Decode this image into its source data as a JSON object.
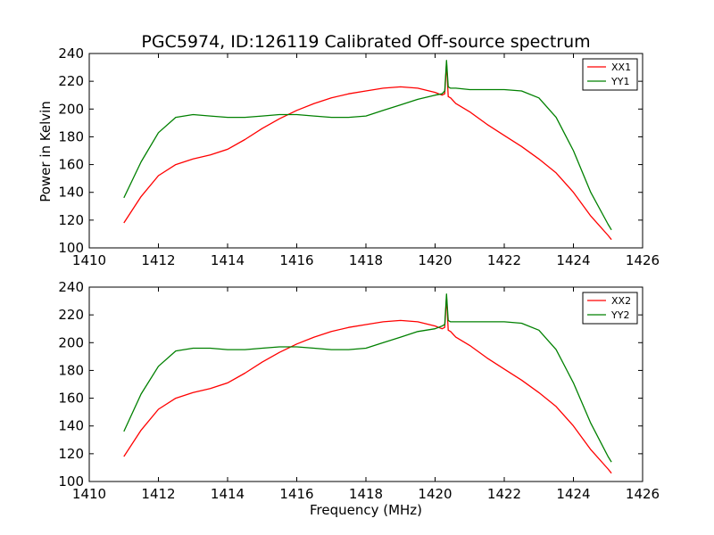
{
  "figure": {
    "title": "PGC5974, ID:126119 Calibrated Off-source spectrum",
    "xlabel": "Frequency (MHz)",
    "ylabel": "Power in Kelvin"
  },
  "chart_data": [
    {
      "type": "line",
      "title": "PGC5974, ID:126119 Calibrated Off-source spectrum",
      "xlabel": "",
      "ylabel": "Power in Kelvin",
      "xlim": [
        1410,
        1426
      ],
      "ylim": [
        100,
        240
      ],
      "xticks": [
        "1410",
        "1412",
        "1414",
        "1416",
        "1418",
        "1420",
        "1422",
        "1424",
        "1426"
      ],
      "yticks": [
        "100",
        "120",
        "140",
        "160",
        "180",
        "200",
        "220",
        "240"
      ],
      "grid": false,
      "legend_position": "top-right",
      "x": [
        1411.0,
        1411.5,
        1412.0,
        1412.5,
        1413.0,
        1413.5,
        1414.0,
        1414.5,
        1415.0,
        1415.5,
        1416.0,
        1416.5,
        1417.0,
        1417.5,
        1418.0,
        1418.5,
        1419.0,
        1419.5,
        1420.0,
        1420.2,
        1420.28,
        1420.33,
        1420.38,
        1420.45,
        1420.6,
        1421.0,
        1421.5,
        1422.0,
        1422.5,
        1423.0,
        1423.5,
        1424.0,
        1424.5,
        1425.0,
        1425.1
      ],
      "series": [
        {
          "name": "XX1",
          "color": "#ff0000",
          "values": [
            118,
            137,
            152,
            160,
            164,
            167,
            171,
            178,
            186,
            193,
            199,
            204,
            208,
            211,
            213,
            215,
            216,
            215,
            212,
            210,
            211,
            233,
            209,
            208,
            204,
            198,
            189,
            181,
            173,
            164,
            154,
            140,
            123,
            109,
            106
          ]
        },
        {
          "name": "YY1",
          "color": "#008000",
          "values": [
            136,
            162,
            183,
            194,
            196,
            195,
            194,
            194,
            195,
            196,
            196,
            195,
            194,
            194,
            195,
            199,
            203,
            207,
            210,
            211,
            213,
            235,
            216,
            215,
            215,
            214,
            214,
            214,
            213,
            208,
            194,
            170,
            140,
            117,
            113
          ]
        }
      ]
    },
    {
      "type": "line",
      "title": "",
      "xlabel": "Frequency (MHz)",
      "ylabel": "",
      "xlim": [
        1410,
        1426
      ],
      "ylim": [
        100,
        240
      ],
      "xticks": [
        "1410",
        "1412",
        "1414",
        "1416",
        "1418",
        "1420",
        "1422",
        "1424",
        "1426"
      ],
      "yticks": [
        "100",
        "120",
        "140",
        "160",
        "180",
        "200",
        "220",
        "240"
      ],
      "grid": false,
      "legend_position": "top-right",
      "x": [
        1411.0,
        1411.5,
        1412.0,
        1412.5,
        1413.0,
        1413.5,
        1414.0,
        1414.5,
        1415.0,
        1415.5,
        1416.0,
        1416.5,
        1417.0,
        1417.5,
        1418.0,
        1418.5,
        1419.0,
        1419.5,
        1420.0,
        1420.2,
        1420.28,
        1420.33,
        1420.38,
        1420.45,
        1420.6,
        1421.0,
        1421.5,
        1422.0,
        1422.5,
        1423.0,
        1423.5,
        1424.0,
        1424.5,
        1425.0,
        1425.1
      ],
      "series": [
        {
          "name": "XX2",
          "color": "#ff0000",
          "values": [
            118,
            137,
            152,
            160,
            164,
            167,
            171,
            178,
            186,
            193,
            199,
            204,
            208,
            211,
            213,
            215,
            216,
            215,
            212,
            210,
            211,
            233,
            209,
            208,
            204,
            198,
            189,
            181,
            173,
            164,
            154,
            140,
            123,
            109,
            106
          ]
        },
        {
          "name": "YY2",
          "color": "#008000",
          "values": [
            136,
            163,
            183,
            194,
            196,
            196,
            195,
            195,
            196,
            197,
            197,
            196,
            195,
            195,
            196,
            200,
            204,
            208,
            210,
            212,
            213,
            235,
            216,
            215,
            215,
            215,
            215,
            215,
            214,
            209,
            195,
            171,
            142,
            118,
            114
          ]
        }
      ]
    }
  ]
}
